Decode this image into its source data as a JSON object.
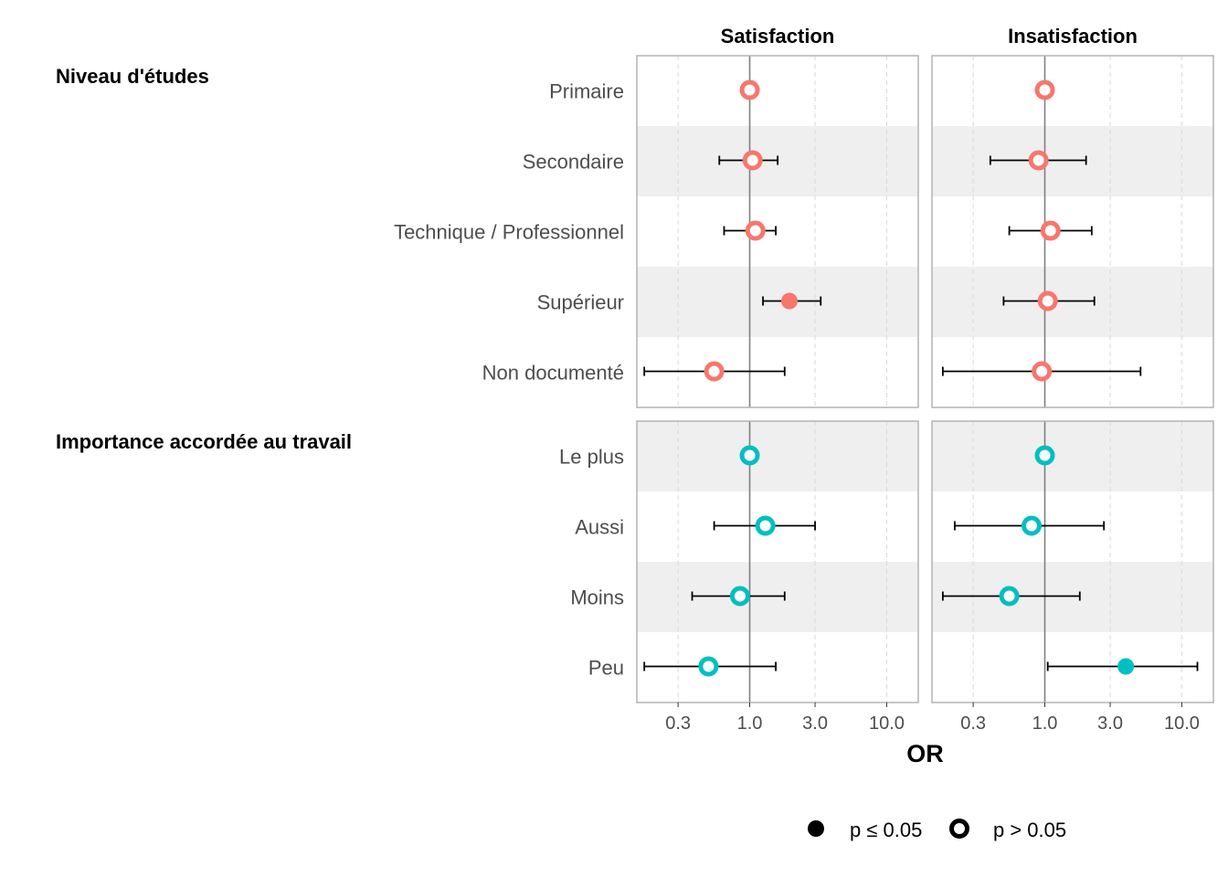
{
  "chart_data": {
    "type": "forest",
    "xlabel": "OR",
    "x_scale": "log",
    "xlim": [
      0.15,
      17
    ],
    "x_ticks": [
      0.3,
      1.0,
      3.0,
      10.0
    ],
    "x_tick_labels": [
      "0.3",
      "1.0",
      "3.0",
      "10.0"
    ],
    "reference_line": 1.0,
    "facets": [
      "Satisfaction",
      "Insatisfaction"
    ],
    "groups": [
      {
        "name": "Niveau d'études",
        "color": "#F8766D",
        "categories": [
          "Primaire",
          "Secondaire",
          "Technique / Professionnel",
          "Supérieur",
          "Non documenté"
        ],
        "estimates": {
          "Satisfaction": [
            {
              "or": 1.0,
              "low": null,
              "high": null,
              "significant": false
            },
            {
              "or": 1.05,
              "low": 0.6,
              "high": 1.6,
              "significant": false
            },
            {
              "or": 1.1,
              "low": 0.65,
              "high": 1.55,
              "significant": false
            },
            {
              "or": 1.95,
              "low": 1.25,
              "high": 3.3,
              "significant": true
            },
            {
              "or": 0.55,
              "low": 0.17,
              "high": 1.8,
              "significant": false
            }
          ],
          "Insatisfaction": [
            {
              "or": 1.0,
              "low": null,
              "high": null,
              "significant": false
            },
            {
              "or": 0.9,
              "low": 0.4,
              "high": 2.0,
              "significant": false
            },
            {
              "or": 1.1,
              "low": 0.55,
              "high": 2.2,
              "significant": false
            },
            {
              "or": 1.05,
              "low": 0.5,
              "high": 2.3,
              "significant": false
            },
            {
              "or": 0.95,
              "low": 0.18,
              "high": 5.0,
              "significant": false
            }
          ]
        }
      },
      {
        "name": "Importance accordée au travail",
        "color": "#00BFC4",
        "categories": [
          "Le plus",
          "Aussi",
          "Moins",
          "Peu"
        ],
        "estimates": {
          "Satisfaction": [
            {
              "or": 1.0,
              "low": null,
              "high": null,
              "significant": false
            },
            {
              "or": 1.3,
              "low": 0.55,
              "high": 3.0,
              "significant": false
            },
            {
              "or": 0.85,
              "low": 0.38,
              "high": 1.8,
              "significant": false
            },
            {
              "or": 0.5,
              "low": 0.17,
              "high": 1.55,
              "significant": false
            }
          ],
          "Insatisfaction": [
            {
              "or": 1.0,
              "low": null,
              "high": null,
              "significant": false
            },
            {
              "or": 0.8,
              "low": 0.22,
              "high": 2.7,
              "significant": false
            },
            {
              "or": 0.55,
              "low": 0.18,
              "high": 1.8,
              "significant": false
            },
            {
              "or": 3.9,
              "low": 1.05,
              "high": 13.0,
              "significant": true
            }
          ]
        }
      }
    ],
    "legend": {
      "position": "bottom",
      "items": [
        {
          "label": "p ≤ 0.05",
          "shape": "filled-circle"
        },
        {
          "label": "p > 0.05",
          "shape": "open-circle"
        }
      ]
    }
  }
}
